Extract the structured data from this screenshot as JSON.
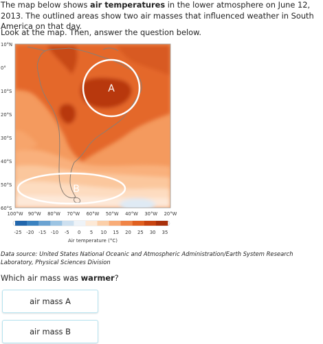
{
  "intro": {
    "part1": "The map below shows ",
    "bold": "air temperatures",
    "part2": " in the lower atmosphere on June 12, 2013. The outlined areas show two air masses that influenced weather in South America on that day."
  },
  "instruction": "Look at the map. Then, answer the question below.",
  "map": {
    "lat_labels": [
      "10°N",
      "0°",
      "10°S",
      "20°S",
      "30°S",
      "40°S",
      "50°S",
      "60°S"
    ],
    "lon_labels": [
      "100°W",
      "90°W",
      "80°W",
      "70°W",
      "60°W",
      "50°W",
      "40°W",
      "30°W",
      "20°W"
    ],
    "air_mass_a": "A",
    "air_mass_b": "B",
    "colorbar_ticks": [
      "-25",
      "-20",
      "-15",
      "-10",
      "-5",
      "0",
      "5",
      "10",
      "15",
      "20",
      "25",
      "30",
      "35"
    ],
    "colorbar_colors": [
      "#2166ac",
      "#3a82c0",
      "#6ba3d2",
      "#9cc4e3",
      "#cde0f0",
      "#eef3f8",
      "#fde9d6",
      "#fbcfa9",
      "#f8ac78",
      "#f08446",
      "#e06020",
      "#c84410",
      "#a8300a"
    ],
    "colorbar_label": "Air temperature (°C)"
  },
  "source": "Data source: United States National Oceanic and Atmospheric Administration/Earth System Research Laboratory, Physical Sciences Division",
  "question": {
    "part1": "Which air mass was ",
    "bold": "warmer",
    "part2": "?"
  },
  "choices": {
    "a": "air mass A",
    "b": "air mass B"
  }
}
